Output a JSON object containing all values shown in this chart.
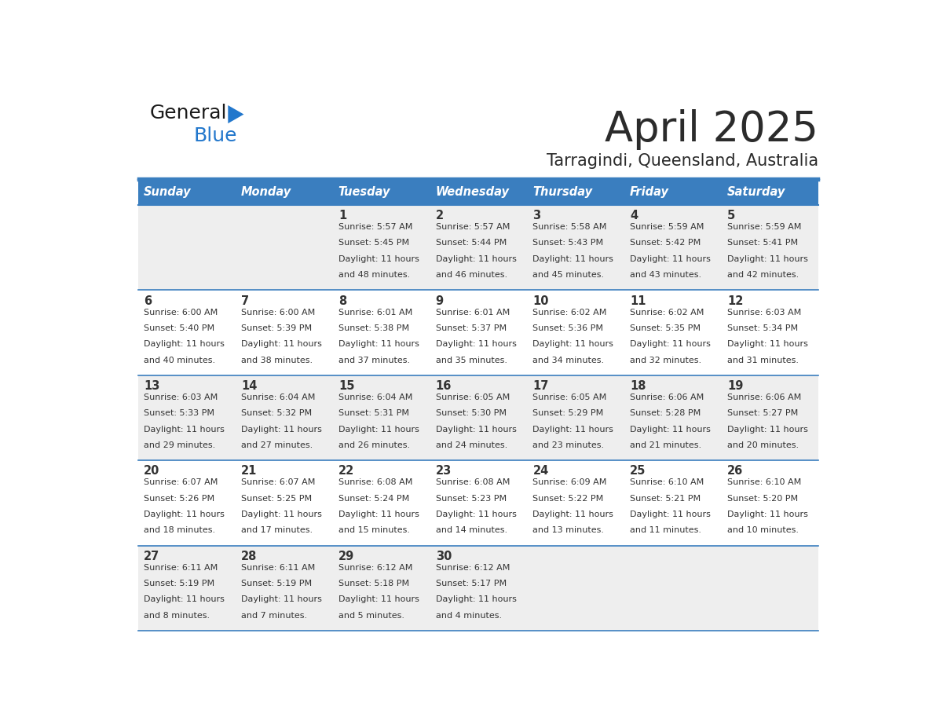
{
  "title": "April 2025",
  "subtitle": "Tarragindi, Queensland, Australia",
  "days_of_week": [
    "Sunday",
    "Monday",
    "Tuesday",
    "Wednesday",
    "Thursday",
    "Friday",
    "Saturday"
  ],
  "header_bg": "#3a7ebf",
  "header_text": "#ffffff",
  "row_bg_odd": "#eeeeee",
  "row_bg_even": "#ffffff",
  "separator_color": "#3a7ebf",
  "text_color": "#333333",
  "weeks": [
    {
      "days": [
        {
          "day": "",
          "sunrise": "",
          "sunset": "",
          "daylight": ""
        },
        {
          "day": "",
          "sunrise": "",
          "sunset": "",
          "daylight": ""
        },
        {
          "day": "1",
          "sunrise": "5:57 AM",
          "sunset": "5:45 PM",
          "daylight": "11 hours and 48 minutes."
        },
        {
          "day": "2",
          "sunrise": "5:57 AM",
          "sunset": "5:44 PM",
          "daylight": "11 hours and 46 minutes."
        },
        {
          "day": "3",
          "sunrise": "5:58 AM",
          "sunset": "5:43 PM",
          "daylight": "11 hours and 45 minutes."
        },
        {
          "day": "4",
          "sunrise": "5:59 AM",
          "sunset": "5:42 PM",
          "daylight": "11 hours and 43 minutes."
        },
        {
          "day": "5",
          "sunrise": "5:59 AM",
          "sunset": "5:41 PM",
          "daylight": "11 hours and 42 minutes."
        }
      ]
    },
    {
      "days": [
        {
          "day": "6",
          "sunrise": "6:00 AM",
          "sunset": "5:40 PM",
          "daylight": "11 hours and 40 minutes."
        },
        {
          "day": "7",
          "sunrise": "6:00 AM",
          "sunset": "5:39 PM",
          "daylight": "11 hours and 38 minutes."
        },
        {
          "day": "8",
          "sunrise": "6:01 AM",
          "sunset": "5:38 PM",
          "daylight": "11 hours and 37 minutes."
        },
        {
          "day": "9",
          "sunrise": "6:01 AM",
          "sunset": "5:37 PM",
          "daylight": "11 hours and 35 minutes."
        },
        {
          "day": "10",
          "sunrise": "6:02 AM",
          "sunset": "5:36 PM",
          "daylight": "11 hours and 34 minutes."
        },
        {
          "day": "11",
          "sunrise": "6:02 AM",
          "sunset": "5:35 PM",
          "daylight": "11 hours and 32 minutes."
        },
        {
          "day": "12",
          "sunrise": "6:03 AM",
          "sunset": "5:34 PM",
          "daylight": "11 hours and 31 minutes."
        }
      ]
    },
    {
      "days": [
        {
          "day": "13",
          "sunrise": "6:03 AM",
          "sunset": "5:33 PM",
          "daylight": "11 hours and 29 minutes."
        },
        {
          "day": "14",
          "sunrise": "6:04 AM",
          "sunset": "5:32 PM",
          "daylight": "11 hours and 27 minutes."
        },
        {
          "day": "15",
          "sunrise": "6:04 AM",
          "sunset": "5:31 PM",
          "daylight": "11 hours and 26 minutes."
        },
        {
          "day": "16",
          "sunrise": "6:05 AM",
          "sunset": "5:30 PM",
          "daylight": "11 hours and 24 minutes."
        },
        {
          "day": "17",
          "sunrise": "6:05 AM",
          "sunset": "5:29 PM",
          "daylight": "11 hours and 23 minutes."
        },
        {
          "day": "18",
          "sunrise": "6:06 AM",
          "sunset": "5:28 PM",
          "daylight": "11 hours and 21 minutes."
        },
        {
          "day": "19",
          "sunrise": "6:06 AM",
          "sunset": "5:27 PM",
          "daylight": "11 hours and 20 minutes."
        }
      ]
    },
    {
      "days": [
        {
          "day": "20",
          "sunrise": "6:07 AM",
          "sunset": "5:26 PM",
          "daylight": "11 hours and 18 minutes."
        },
        {
          "day": "21",
          "sunrise": "6:07 AM",
          "sunset": "5:25 PM",
          "daylight": "11 hours and 17 minutes."
        },
        {
          "day": "22",
          "sunrise": "6:08 AM",
          "sunset": "5:24 PM",
          "daylight": "11 hours and 15 minutes."
        },
        {
          "day": "23",
          "sunrise": "6:08 AM",
          "sunset": "5:23 PM",
          "daylight": "11 hours and 14 minutes."
        },
        {
          "day": "24",
          "sunrise": "6:09 AM",
          "sunset": "5:22 PM",
          "daylight": "11 hours and 13 minutes."
        },
        {
          "day": "25",
          "sunrise": "6:10 AM",
          "sunset": "5:21 PM",
          "daylight": "11 hours and 11 minutes."
        },
        {
          "day": "26",
          "sunrise": "6:10 AM",
          "sunset": "5:20 PM",
          "daylight": "11 hours and 10 minutes."
        }
      ]
    },
    {
      "days": [
        {
          "day": "27",
          "sunrise": "6:11 AM",
          "sunset": "5:19 PM",
          "daylight": "11 hours and 8 minutes."
        },
        {
          "day": "28",
          "sunrise": "6:11 AM",
          "sunset": "5:19 PM",
          "daylight": "11 hours and 7 minutes."
        },
        {
          "day": "29",
          "sunrise": "6:12 AM",
          "sunset": "5:18 PM",
          "daylight": "11 hours and 5 minutes."
        },
        {
          "day": "30",
          "sunrise": "6:12 AM",
          "sunset": "5:17 PM",
          "daylight": "11 hours and 4 minutes."
        },
        {
          "day": "",
          "sunrise": "",
          "sunset": "",
          "daylight": ""
        },
        {
          "day": "",
          "sunrise": "",
          "sunset": "",
          "daylight": ""
        },
        {
          "day": "",
          "sunrise": "",
          "sunset": "",
          "daylight": ""
        }
      ]
    }
  ]
}
